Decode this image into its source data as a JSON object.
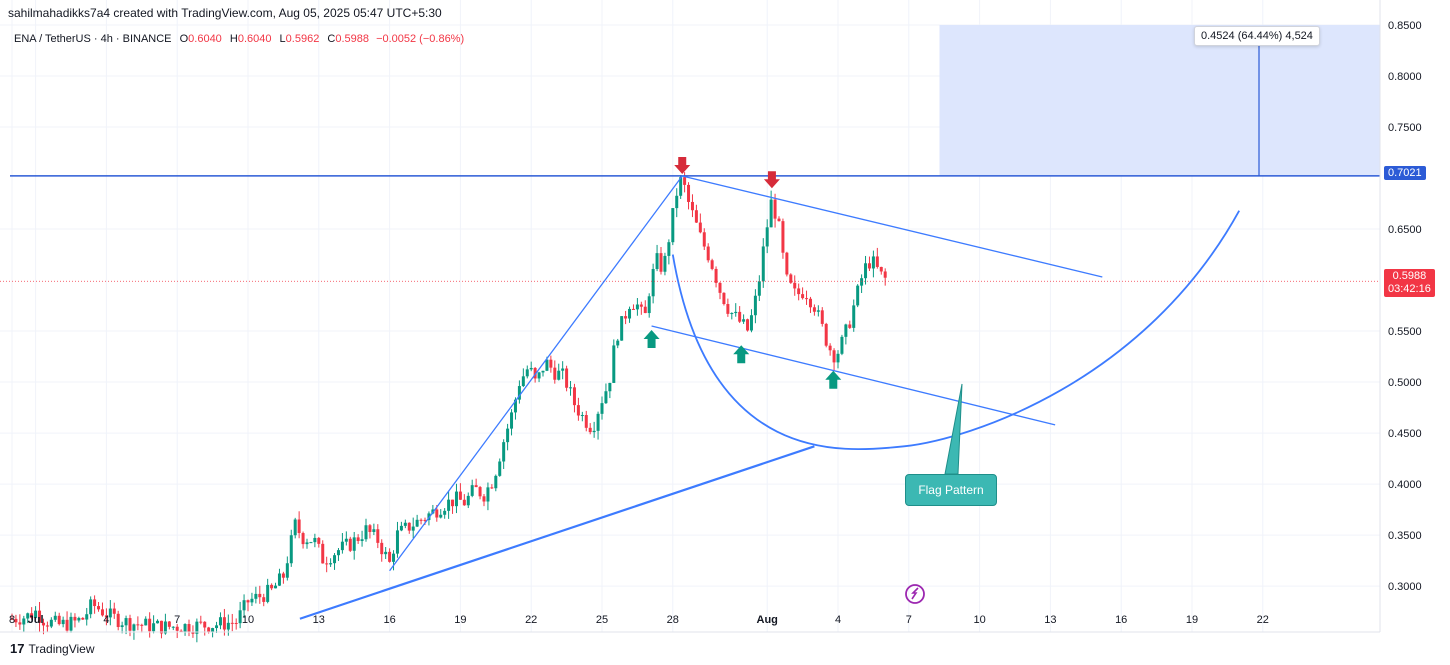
{
  "header": {
    "credit": "sahilmahadikks7a4 created with TradingView.com, Aug 05, 2025 05:47 UTC+5:30",
    "symbol": "ENA / TetherUS · 4h · BINANCE",
    "open_label": "O",
    "open": "0.6040",
    "high_label": "H",
    "high": "0.6040",
    "low_label": "L",
    "low": "0.5962",
    "close_label": "C",
    "close": "0.5988",
    "change": "−0.0052 (−0.86%)"
  },
  "measure_tooltip": "0.4524 (64.44%) 4,524",
  "annotation": {
    "flag_label": "Flag Pattern"
  },
  "price_axis": {
    "resistance_label": "0.7021",
    "last_price_label": "0.5988",
    "countdown": "03:42:16"
  },
  "footer": {
    "brand": "TradingView"
  },
  "colors": {
    "up": "#089981",
    "down": "#f23645",
    "line": "#2962ff",
    "pattern": "#3d7bff",
    "measure_bg": "#dde6fd",
    "resistance": "#2c5bd6"
  },
  "chart_data": {
    "type": "candlestick",
    "symbol": "ENA/USDT",
    "interval": "4h",
    "y_ticks": [
      "0.8500",
      "0.8000",
      "0.7500",
      "0.6500",
      "0.5500",
      "0.5000",
      "0.4500",
      "0.4000",
      "0.3500",
      "0.3000"
    ],
    "ylim": [
      0.255,
      0.85
    ],
    "x_ticks": [
      {
        "label": "8",
        "day": 8
      },
      {
        "label": "Jul",
        "day": 9
      },
      {
        "label": "4",
        "day": 12
      },
      {
        "label": "7",
        "day": 15
      },
      {
        "label": "10",
        "day": 18
      },
      {
        "label": "13",
        "day": 21
      },
      {
        "label": "16",
        "day": 24
      },
      {
        "label": "19",
        "day": 27
      },
      {
        "label": "22",
        "day": 30
      },
      {
        "label": "25",
        "day": 33
      },
      {
        "label": "28",
        "day": 36
      },
      {
        "label": "Aug",
        "day": 40
      },
      {
        "label": "4",
        "day": 43
      },
      {
        "label": "7",
        "day": 46
      },
      {
        "label": "10",
        "day": 49
      },
      {
        "label": "13",
        "day": 52
      },
      {
        "label": "16",
        "day": 55
      },
      {
        "label": "19",
        "day": 58
      },
      {
        "label": "22",
        "day": 61
      }
    ],
    "close_path": [
      [
        8.0,
        0.268
      ],
      [
        8.6,
        0.27
      ],
      [
        9.0,
        0.275
      ],
      [
        9.4,
        0.266
      ],
      [
        10.0,
        0.262
      ],
      [
        10.6,
        0.264
      ],
      [
        11.0,
        0.268
      ],
      [
        11.4,
        0.282
      ],
      [
        11.8,
        0.276
      ],
      [
        12.2,
        0.27
      ],
      [
        12.8,
        0.265
      ],
      [
        13.5,
        0.262
      ],
      [
        14.5,
        0.26
      ],
      [
        15.5,
        0.261
      ],
      [
        16.5,
        0.262
      ],
      [
        17.5,
        0.265
      ],
      [
        18.0,
        0.285
      ],
      [
        18.5,
        0.29
      ],
      [
        19.0,
        0.295
      ],
      [
        19.5,
        0.31
      ],
      [
        19.8,
        0.34
      ],
      [
        20.0,
        0.36
      ],
      [
        20.3,
        0.348
      ],
      [
        20.8,
        0.345
      ],
      [
        21.2,
        0.325
      ],
      [
        21.8,
        0.335
      ],
      [
        22.4,
        0.342
      ],
      [
        23.0,
        0.355
      ],
      [
        23.5,
        0.345
      ],
      [
        24.0,
        0.322
      ],
      [
        24.3,
        0.35
      ],
      [
        24.8,
        0.358
      ],
      [
        25.3,
        0.365
      ],
      [
        25.8,
        0.372
      ],
      [
        26.3,
        0.38
      ],
      [
        26.8,
        0.385
      ],
      [
        27.2,
        0.382
      ],
      [
        27.6,
        0.395
      ],
      [
        28.0,
        0.39
      ],
      [
        28.4,
        0.405
      ],
      [
        28.8,
        0.44
      ],
      [
        29.2,
        0.47
      ],
      [
        29.5,
        0.5
      ],
      [
        29.9,
        0.515
      ],
      [
        30.2,
        0.498
      ],
      [
        30.6,
        0.52
      ],
      [
        31.0,
        0.51
      ],
      [
        31.4,
        0.505
      ],
      [
        31.8,
        0.48
      ],
      [
        32.2,
        0.465
      ],
      [
        32.6,
        0.455
      ],
      [
        32.9,
        0.478
      ],
      [
        33.3,
        0.5
      ],
      [
        33.6,
        0.545
      ],
      [
        33.9,
        0.56
      ],
      [
        34.2,
        0.58
      ],
      [
        34.5,
        0.575
      ],
      [
        34.8,
        0.56
      ],
      [
        35.0,
        0.59
      ],
      [
        35.3,
        0.62
      ],
      [
        35.6,
        0.61
      ],
      [
        35.9,
        0.65
      ],
      [
        36.2,
        0.69
      ],
      [
        36.4,
        0.7
      ],
      [
        36.6,
        0.68
      ],
      [
        36.9,
        0.66
      ],
      [
        37.2,
        0.64
      ],
      [
        37.6,
        0.62
      ],
      [
        38.0,
        0.59
      ],
      [
        38.4,
        0.57
      ],
      [
        38.8,
        0.56
      ],
      [
        39.2,
        0.55
      ],
      [
        39.6,
        0.59
      ],
      [
        39.9,
        0.64
      ],
      [
        40.2,
        0.68
      ],
      [
        40.5,
        0.65
      ],
      [
        40.8,
        0.6
      ],
      [
        41.2,
        0.585
      ],
      [
        41.6,
        0.59
      ],
      [
        42.0,
        0.575
      ],
      [
        42.3,
        0.555
      ],
      [
        42.6,
        0.535
      ],
      [
        42.9,
        0.525
      ],
      [
        43.2,
        0.54
      ],
      [
        43.5,
        0.56
      ],
      [
        43.8,
        0.585
      ],
      [
        44.1,
        0.61
      ],
      [
        44.4,
        0.62
      ],
      [
        44.8,
        0.605
      ],
      [
        45.1,
        0.599
      ]
    ],
    "resistance_level": 0.7021,
    "last_price": 0.5988,
    "measured_move_zone": {
      "x_start_day": 47.3,
      "y_range": [
        0.7021,
        0.85
      ]
    },
    "pattern_lines": [
      {
        "name": "pole",
        "from": [
          24.0,
          0.315
        ],
        "to": [
          36.4,
          0.702
        ]
      },
      {
        "name": "flag-upper",
        "from": [
          36.4,
          0.702
        ],
        "to": [
          54.2,
          0.603
        ]
      },
      {
        "name": "flag-lower",
        "from": [
          35.1,
          0.555
        ],
        "to": [
          52.2,
          0.458
        ]
      },
      {
        "name": "support-curve",
        "from": [
          20.2,
          0.268
        ],
        "to": [
          42.0,
          0.437
        ]
      },
      {
        "name": "cup-curve",
        "from": [
          36.0,
          0.625
        ],
        "to": [
          60.0,
          0.668
        ]
      }
    ],
    "markers": [
      {
        "type": "down-arrow",
        "day": 36.4,
        "price": 0.702
      },
      {
        "type": "down-arrow",
        "day": 40.2,
        "price": 0.688
      },
      {
        "type": "up-arrow",
        "day": 35.1,
        "price": 0.553
      },
      {
        "type": "up-arrow",
        "day": 38.9,
        "price": 0.538
      },
      {
        "type": "up-arrow",
        "day": 42.8,
        "price": 0.513
      }
    ]
  }
}
